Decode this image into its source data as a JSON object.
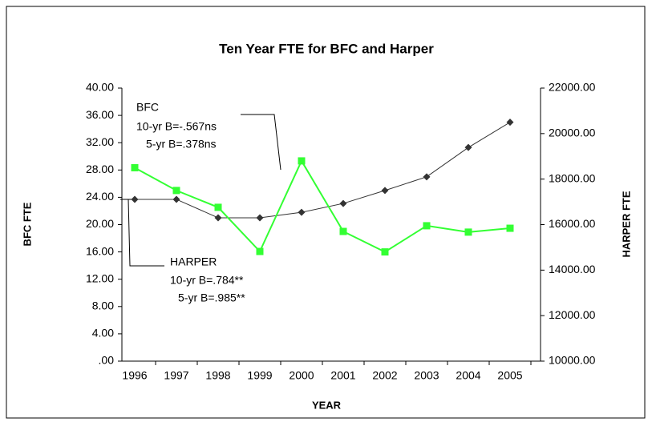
{
  "chart_data": {
    "type": "line",
    "title": "Ten Year FTE for BFC and Harper",
    "xlabel": "YEAR",
    "ylabel": "BFC FTE",
    "y2label": "HARPER FTE",
    "categories": [
      "1996",
      "1997",
      "1998",
      "1999",
      "2000",
      "2001",
      "2002",
      "2003",
      "2004",
      "2005"
    ],
    "series": [
      {
        "name": "BFC",
        "color": "#333333",
        "marker": "diamond",
        "values": [
          23.7,
          23.7,
          21.0,
          21.0,
          21.8,
          23.1,
          25.0,
          27.0,
          31.3,
          35.0
        ]
      },
      {
        "name": "HARPER",
        "color": "#33ff33",
        "marker": "square",
        "axis": "y2",
        "values": [
          18500,
          17500,
          16760,
          14820,
          18800,
          15700,
          14800,
          15950,
          15670,
          15840
        ]
      }
    ],
    "ylim": [
      0,
      40
    ],
    "yticks": [
      {
        "value": 0,
        "label": ".00"
      },
      {
        "value": 4,
        "label": "4.00"
      },
      {
        "value": 8,
        "label": "8.00"
      },
      {
        "value": 12,
        "label": "12.00"
      },
      {
        "value": 16,
        "label": "16.00"
      },
      {
        "value": 20,
        "label": "20.00"
      },
      {
        "value": 24,
        "label": "24.00"
      },
      {
        "value": 28,
        "label": "28.00"
      },
      {
        "value": 32,
        "label": "32.00"
      },
      {
        "value": 36,
        "label": "36.00"
      },
      {
        "value": 40,
        "label": "40.00"
      }
    ],
    "y2lim": [
      10000,
      22000
    ],
    "y2ticks": [
      {
        "value": 10000,
        "label": "10000.00"
      },
      {
        "value": 12000,
        "label": "12000.00"
      },
      {
        "value": 14000,
        "label": "14000.00"
      },
      {
        "value": 16000,
        "label": "16000.00"
      },
      {
        "value": 18000,
        "label": "18000.00"
      },
      {
        "value": 20000,
        "label": "20000.00"
      },
      {
        "value": 22000,
        "label": "22000.00"
      }
    ],
    "annotations": [
      {
        "lines": [
          "BFC",
          "10-yr B=-.567ns",
          "5-yr B=.378ns"
        ]
      },
      {
        "lines": [
          "HARPER",
          "10-yr B=.784**",
          "5-yr B=.985**"
        ]
      }
    ]
  }
}
